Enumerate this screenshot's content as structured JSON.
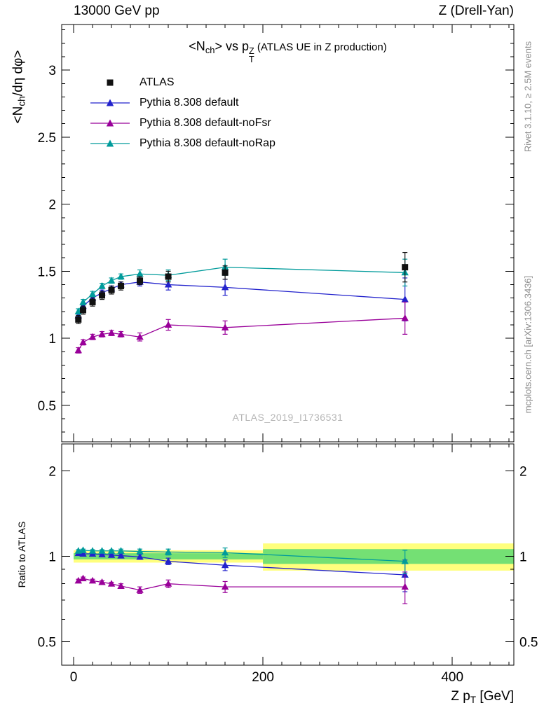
{
  "header": {
    "left": "13000 GeV pp",
    "right": "Z (Drell-Yan)"
  },
  "title_tokens": [
    {
      "t": "<N"
    },
    {
      "t": "ch",
      "style": "sub"
    },
    {
      "t": "> vs p"
    },
    {
      "stack": {
        "sup": "Z",
        "sub": "T"
      }
    },
    {
      "t": " (ATLAS UE in Z production)",
      "style": "small"
    }
  ],
  "watermark": "ATLAS_2019_I1736531",
  "side_notes": {
    "top_right": "Rivet 3.1.10, ≥ 2.5M events",
    "bottom_right": "mcplots.cern.ch [arXiv:1306.3436]"
  },
  "axes": {
    "y_main_tokens": [
      {
        "t": "<N"
      },
      {
        "t": "ch",
        "style": "sub"
      },
      {
        "t": "/dη dφ>"
      }
    ],
    "y_ratio_label": "Ratio to ATLAS",
    "x_tokens": [
      {
        "t": "Z p"
      },
      {
        "t": "T",
        "style": "sub"
      },
      {
        "t": " [GeV]"
      }
    ]
  },
  "colors": {
    "atlas": "#111111",
    "pythia_default": "#2222cc",
    "pythia_nofsr": "#990099",
    "pythia_norap": "#009b9b",
    "band_yellow": "#ffff7d",
    "band_green": "#74e074",
    "frame": "#000000",
    "watermark_gray": "#b6b6b6",
    "note_gray": "#8c8c8c"
  },
  "legend": [
    {
      "label": "ATLAS",
      "marker": "square",
      "color": "#111111",
      "line": false
    },
    {
      "label": "Pythia 8.308 default",
      "marker": "triangle",
      "color": "#2222cc",
      "line": true
    },
    {
      "label": "Pythia 8.308 default-noFsr",
      "marker": "triangle",
      "color": "#990099",
      "line": true
    },
    {
      "label": "Pythia 8.308 default-noRap",
      "marker": "triangle",
      "color": "#009b9b",
      "line": true
    }
  ],
  "chart_data": {
    "type": "line",
    "title": "<Nch> vs pT^Z (ATLAS UE in Z production)",
    "xlabel": "Z pT [GeV]",
    "ylabel": "<Nch/deta dphi>",
    "x": [
      5,
      10,
      20,
      30,
      40,
      50,
      70,
      100,
      160,
      350
    ],
    "xlim": [
      -12.6,
      465
    ],
    "xticks": [
      0,
      200,
      400
    ],
    "x_minor_step": 20,
    "x_tick_range": [
      0,
      460
    ],
    "main_panel": {
      "ylim": [
        0.228,
        3.34
      ],
      "yticks": [
        0.5,
        1,
        1.5,
        2,
        2.5,
        3
      ],
      "y_minor_range": [
        0.3,
        3.3
      ],
      "y_minor_step": 0.1,
      "series": [
        {
          "name": "ATLAS",
          "color": "#111111",
          "marker": "square",
          "line": false,
          "values": [
            1.14,
            1.21,
            1.27,
            1.32,
            1.36,
            1.39,
            1.43,
            1.46,
            1.49,
            1.53
          ],
          "errors": [
            0.03,
            0.03,
            0.03,
            0.03,
            0.03,
            0.03,
            0.03,
            0.04,
            0.05,
            0.11
          ]
        },
        {
          "name": "Pythia 8.308 default",
          "color": "#2222cc",
          "marker": "triangle",
          "line": true,
          "values": [
            1.17,
            1.24,
            1.3,
            1.34,
            1.37,
            1.4,
            1.42,
            1.4,
            1.38,
            1.29
          ],
          "errors": [
            0.02,
            0.02,
            0.02,
            0.02,
            0.02,
            0.02,
            0.03,
            0.04,
            0.06,
            0.16
          ]
        },
        {
          "name": "Pythia 8.308 default-noFsr",
          "color": "#990099",
          "marker": "triangle",
          "line": true,
          "values": [
            0.91,
            0.97,
            1.01,
            1.03,
            1.04,
            1.03,
            1.01,
            1.1,
            1.08,
            1.15
          ],
          "errors": [
            0.02,
            0.02,
            0.02,
            0.02,
            0.02,
            0.02,
            0.03,
            0.04,
            0.05,
            0.12
          ]
        },
        {
          "name": "Pythia 8.308 default-noRap",
          "color": "#009b9b",
          "marker": "triangle",
          "line": true,
          "values": [
            1.2,
            1.27,
            1.33,
            1.39,
            1.43,
            1.46,
            1.48,
            1.47,
            1.53,
            1.49
          ],
          "errors": [
            0.02,
            0.02,
            0.02,
            0.02,
            0.02,
            0.02,
            0.03,
            0.04,
            0.06,
            0.1
          ]
        }
      ]
    },
    "ratio_panel": {
      "yscale": "log",
      "ylim": [
        0.413,
        2.49
      ],
      "yticks": [
        0.5,
        1,
        2
      ],
      "y_minor": [
        0.6,
        0.7,
        0.8,
        0.9
      ],
      "band_segments": [
        {
          "x0": 0,
          "x1": 200,
          "yellow": [
            0.95,
            1.05
          ],
          "green": [
            0.975,
            1.025
          ]
        },
        {
          "x0": 200,
          "x1": 465,
          "yellow": [
            0.89,
            1.11
          ],
          "green": [
            0.94,
            1.06
          ]
        }
      ],
      "series": [
        {
          "name": "Pythia 8.308 default",
          "color": "#2222cc",
          "marker": "triangle",
          "line": true,
          "values": [
            1.025,
            1.02,
            1.02,
            1.015,
            1.01,
            1.005,
            0.995,
            0.96,
            0.93,
            0.86
          ],
          "errors": [
            0.01,
            0.01,
            0.01,
            0.01,
            0.01,
            0.015,
            0.02,
            0.025,
            0.04,
            0.11
          ]
        },
        {
          "name": "Pythia 8.308 default-noFsr",
          "color": "#990099",
          "marker": "triangle",
          "line": true,
          "values": [
            0.82,
            0.835,
            0.82,
            0.81,
            0.8,
            0.785,
            0.76,
            0.8,
            0.78,
            0.78
          ],
          "errors": [
            0.01,
            0.01,
            0.01,
            0.01,
            0.01,
            0.015,
            0.02,
            0.025,
            0.035,
            0.1
          ]
        },
        {
          "name": "Pythia 8.308 default-noRap",
          "color": "#009b9b",
          "marker": "triangle",
          "line": true,
          "values": [
            1.045,
            1.05,
            1.045,
            1.045,
            1.045,
            1.045,
            1.04,
            1.035,
            1.03,
            0.96
          ],
          "errors": [
            0.01,
            0.01,
            0.01,
            0.01,
            0.01,
            0.015,
            0.02,
            0.025,
            0.04,
            0.09
          ]
        }
      ]
    }
  }
}
